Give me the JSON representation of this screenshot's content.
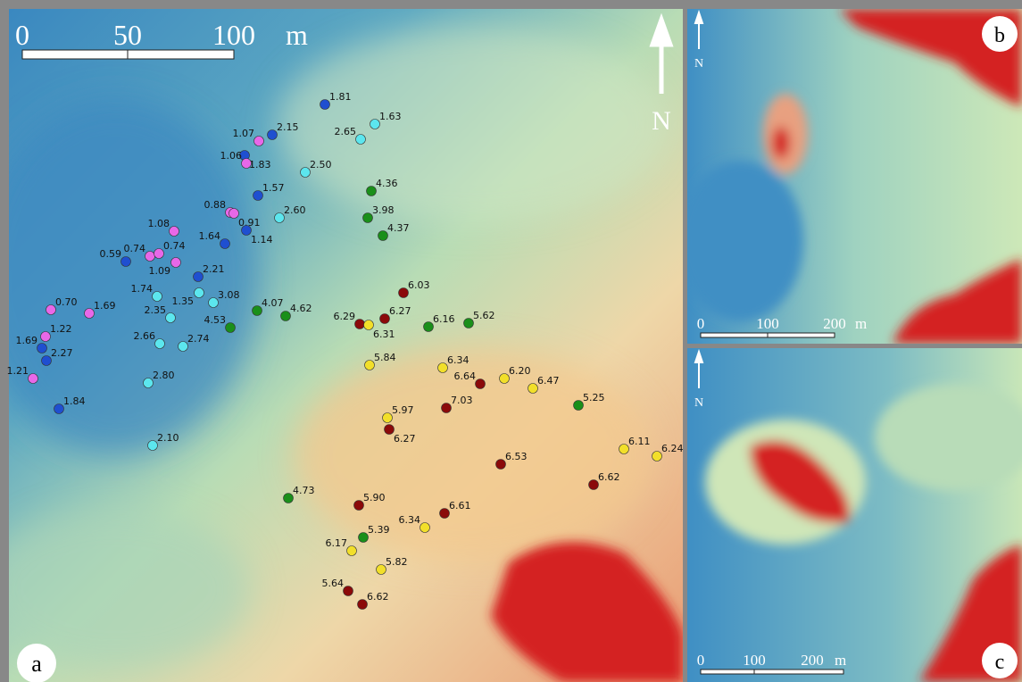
{
  "panel_a": {
    "label": "a",
    "north": "N",
    "scale": {
      "ticks": [
        "0",
        "50",
        "100"
      ],
      "unit": "m"
    },
    "points": [
      {
        "label": "1.81",
        "color": "#1f4fd0"
      },
      {
        "label": "1.63",
        "color": "#5ce6ee"
      },
      {
        "label": "2.65",
        "color": "#5ce6ee"
      },
      {
        "label": "2.15",
        "color": "#1f4fd0"
      },
      {
        "label": "1.07",
        "color": "#e868e8"
      },
      {
        "label": "1.83",
        "color": "#1f4fd0"
      },
      {
        "label": "1.06",
        "color": "#e868e8"
      },
      {
        "label": "2.50",
        "color": "#5ce6ee"
      },
      {
        "label": "4.36",
        "color": "#1a8f1a"
      },
      {
        "label": "1.57",
        "color": "#1f4fd0"
      },
      {
        "label": "0.88",
        "color": "#e868e8"
      },
      {
        "label": "0.91",
        "color": "#e868e8"
      },
      {
        "label": "2.60",
        "color": "#5ce6ee"
      },
      {
        "label": "3.98",
        "color": "#1a8f1a"
      },
      {
        "label": "1.08",
        "color": "#e868e8"
      },
      {
        "label": "1.64",
        "color": "#1f4fd0"
      },
      {
        "label": "1.14",
        "color": "#1f4fd0"
      },
      {
        "label": "4.37",
        "color": "#1a8f1a"
      },
      {
        "label": "0.59",
        "color": "#1f4fd0"
      },
      {
        "label": "0.74",
        "color": "#e868e8"
      },
      {
        "label": "0.74",
        "color": "#e868e8"
      },
      {
        "label": "1.09",
        "color": "#e868e8"
      },
      {
        "label": "2.21",
        "color": "#1f4fd0"
      },
      {
        "label": "1.74",
        "color": "#5ce6ee"
      },
      {
        "label": "1.35",
        "color": "#5ce6ee"
      },
      {
        "label": "3.08",
        "color": "#5ce6ee"
      },
      {
        "label": "2.35",
        "color": "#5ce6ee"
      },
      {
        "label": "0.70",
        "color": "#e868e8"
      },
      {
        "label": "1.69",
        "color": "#e868e8"
      },
      {
        "label": "4.07",
        "color": "#1a8f1a"
      },
      {
        "label": "4.62",
        "color": "#1a8f1a"
      },
      {
        "label": "4.53",
        "color": "#1a8f1a"
      },
      {
        "label": "1.22",
        "color": "#e868e8"
      },
      {
        "label": "1.69",
        "color": "#1f4fd0"
      },
      {
        "label": "2.66",
        "color": "#5ce6ee"
      },
      {
        "label": "2.74",
        "color": "#5ce6ee"
      },
      {
        "label": "2.27",
        "color": "#1f4fd0"
      },
      {
        "label": "1.21",
        "color": "#e868e8"
      },
      {
        "label": "2.80",
        "color": "#5ce6ee"
      },
      {
        "label": "1.84",
        "color": "#1f4fd0"
      },
      {
        "label": "2.10",
        "color": "#5ce6ee"
      },
      {
        "label": "6.03",
        "color": "#8b0a0a"
      },
      {
        "label": "6.29",
        "color": "#8b0a0a"
      },
      {
        "label": "6.27",
        "color": "#8b0a0a"
      },
      {
        "label": "6.31",
        "color": "#f2df2a"
      },
      {
        "label": "6.16",
        "color": "#1a8f1a"
      },
      {
        "label": "5.62",
        "color": "#1a8f1a"
      },
      {
        "label": "5.84",
        "color": "#f2df2a"
      },
      {
        "label": "6.34",
        "color": "#f2df2a"
      },
      {
        "label": "6.64",
        "color": "#8b0a0a"
      },
      {
        "label": "6.20",
        "color": "#f2df2a"
      },
      {
        "label": "6.47",
        "color": "#f2df2a"
      },
      {
        "label": "7.03",
        "color": "#8b0a0a"
      },
      {
        "label": "5.25",
        "color": "#1a8f1a"
      },
      {
        "label": "5.97",
        "color": "#f2df2a"
      },
      {
        "label": "6.27",
        "color": "#8b0a0a"
      },
      {
        "label": "6.11",
        "color": "#f2df2a"
      },
      {
        "label": "6.24",
        "color": "#f2df2a"
      },
      {
        "label": "6.53",
        "color": "#8b0a0a"
      },
      {
        "label": "6.62",
        "color": "#8b0a0a"
      },
      {
        "label": "4.73",
        "color": "#1a8f1a"
      },
      {
        "label": "5.90",
        "color": "#8b0a0a"
      },
      {
        "label": "6.61",
        "color": "#8b0a0a"
      },
      {
        "label": "6.34",
        "color": "#f2df2a"
      },
      {
        "label": "5.39",
        "color": "#1a8f1a"
      },
      {
        "label": "6.17",
        "color": "#f2df2a"
      },
      {
        "label": "5.82",
        "color": "#f2df2a"
      },
      {
        "label": "5.64",
        "color": "#8b0a0a"
      },
      {
        "label": "6.62",
        "color": "#8b0a0a"
      }
    ]
  },
  "panel_b": {
    "label": "b",
    "north": "N",
    "scale": {
      "ticks": [
        "0",
        "100",
        "200"
      ],
      "unit": "m"
    }
  },
  "panel_c": {
    "label": "c",
    "north": "N",
    "scale": {
      "ticks": [
        "0",
        "100",
        "200"
      ],
      "unit": "m"
    }
  }
}
